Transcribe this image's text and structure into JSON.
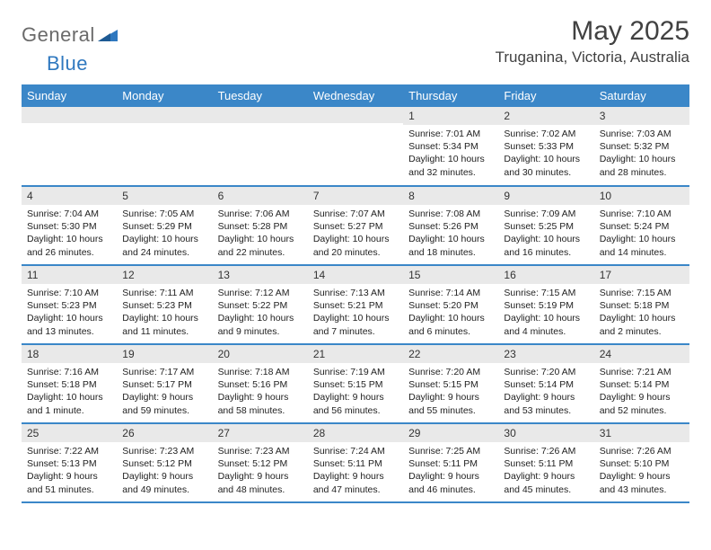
{
  "brand": {
    "name_a": "General",
    "name_b": "Blue"
  },
  "title": "May 2025",
  "location": "Truganina, Victoria, Australia",
  "colors": {
    "header_bg": "#3b87c8",
    "header_fg": "#ffffff",
    "daynum_bg": "#e9e9e9",
    "row_border": "#3b87c8",
    "logo_gray": "#6a6a6a",
    "logo_blue": "#2f78bf",
    "text": "#222222",
    "title_color": "#414141"
  },
  "weekdays": [
    "Sunday",
    "Monday",
    "Tuesday",
    "Wednesday",
    "Thursday",
    "Friday",
    "Saturday"
  ],
  "weeks": [
    [
      null,
      null,
      null,
      null,
      {
        "d": "1",
        "sr": "7:01 AM",
        "ss": "5:34 PM",
        "dl": "10 hours and 32 minutes."
      },
      {
        "d": "2",
        "sr": "7:02 AM",
        "ss": "5:33 PM",
        "dl": "10 hours and 30 minutes."
      },
      {
        "d": "3",
        "sr": "7:03 AM",
        "ss": "5:32 PM",
        "dl": "10 hours and 28 minutes."
      }
    ],
    [
      {
        "d": "4",
        "sr": "7:04 AM",
        "ss": "5:30 PM",
        "dl": "10 hours and 26 minutes."
      },
      {
        "d": "5",
        "sr": "7:05 AM",
        "ss": "5:29 PM",
        "dl": "10 hours and 24 minutes."
      },
      {
        "d": "6",
        "sr": "7:06 AM",
        "ss": "5:28 PM",
        "dl": "10 hours and 22 minutes."
      },
      {
        "d": "7",
        "sr": "7:07 AM",
        "ss": "5:27 PM",
        "dl": "10 hours and 20 minutes."
      },
      {
        "d": "8",
        "sr": "7:08 AM",
        "ss": "5:26 PM",
        "dl": "10 hours and 18 minutes."
      },
      {
        "d": "9",
        "sr": "7:09 AM",
        "ss": "5:25 PM",
        "dl": "10 hours and 16 minutes."
      },
      {
        "d": "10",
        "sr": "7:10 AM",
        "ss": "5:24 PM",
        "dl": "10 hours and 14 minutes."
      }
    ],
    [
      {
        "d": "11",
        "sr": "7:10 AM",
        "ss": "5:23 PM",
        "dl": "10 hours and 13 minutes."
      },
      {
        "d": "12",
        "sr": "7:11 AM",
        "ss": "5:23 PM",
        "dl": "10 hours and 11 minutes."
      },
      {
        "d": "13",
        "sr": "7:12 AM",
        "ss": "5:22 PM",
        "dl": "10 hours and 9 minutes."
      },
      {
        "d": "14",
        "sr": "7:13 AM",
        "ss": "5:21 PM",
        "dl": "10 hours and 7 minutes."
      },
      {
        "d": "15",
        "sr": "7:14 AM",
        "ss": "5:20 PM",
        "dl": "10 hours and 6 minutes."
      },
      {
        "d": "16",
        "sr": "7:15 AM",
        "ss": "5:19 PM",
        "dl": "10 hours and 4 minutes."
      },
      {
        "d": "17",
        "sr": "7:15 AM",
        "ss": "5:18 PM",
        "dl": "10 hours and 2 minutes."
      }
    ],
    [
      {
        "d": "18",
        "sr": "7:16 AM",
        "ss": "5:18 PM",
        "dl": "10 hours and 1 minute."
      },
      {
        "d": "19",
        "sr": "7:17 AM",
        "ss": "5:17 PM",
        "dl": "9 hours and 59 minutes."
      },
      {
        "d": "20",
        "sr": "7:18 AM",
        "ss": "5:16 PM",
        "dl": "9 hours and 58 minutes."
      },
      {
        "d": "21",
        "sr": "7:19 AM",
        "ss": "5:15 PM",
        "dl": "9 hours and 56 minutes."
      },
      {
        "d": "22",
        "sr": "7:20 AM",
        "ss": "5:15 PM",
        "dl": "9 hours and 55 minutes."
      },
      {
        "d": "23",
        "sr": "7:20 AM",
        "ss": "5:14 PM",
        "dl": "9 hours and 53 minutes."
      },
      {
        "d": "24",
        "sr": "7:21 AM",
        "ss": "5:14 PM",
        "dl": "9 hours and 52 minutes."
      }
    ],
    [
      {
        "d": "25",
        "sr": "7:22 AM",
        "ss": "5:13 PM",
        "dl": "9 hours and 51 minutes."
      },
      {
        "d": "26",
        "sr": "7:23 AM",
        "ss": "5:12 PM",
        "dl": "9 hours and 49 minutes."
      },
      {
        "d": "27",
        "sr": "7:23 AM",
        "ss": "5:12 PM",
        "dl": "9 hours and 48 minutes."
      },
      {
        "d": "28",
        "sr": "7:24 AM",
        "ss": "5:11 PM",
        "dl": "9 hours and 47 minutes."
      },
      {
        "d": "29",
        "sr": "7:25 AM",
        "ss": "5:11 PM",
        "dl": "9 hours and 46 minutes."
      },
      {
        "d": "30",
        "sr": "7:26 AM",
        "ss": "5:11 PM",
        "dl": "9 hours and 45 minutes."
      },
      {
        "d": "31",
        "sr": "7:26 AM",
        "ss": "5:10 PM",
        "dl": "9 hours and 43 minutes."
      }
    ]
  ],
  "labels": {
    "sunrise": "Sunrise: ",
    "sunset": "Sunset: ",
    "daylight": "Daylight: "
  }
}
